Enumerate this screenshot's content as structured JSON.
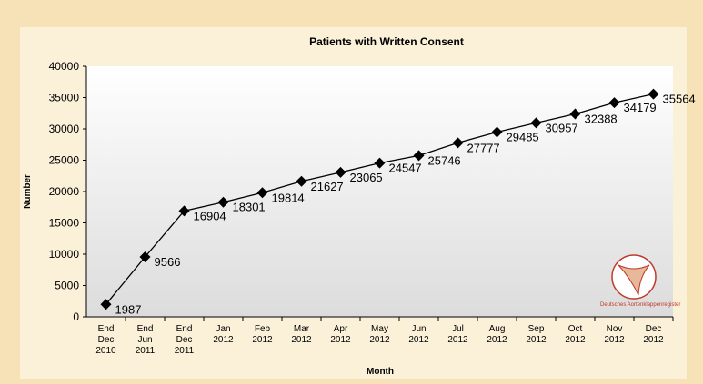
{
  "chart_data": {
    "type": "line",
    "title": "Patients with Written Consent",
    "x_label": "Month",
    "y_label": "Number",
    "categories": [
      "End\nDec\n2010",
      "End\nJun\n2011",
      "End\nDec\n2011",
      "Jan\n2012",
      "Feb\n2012",
      "Mar\n2012",
      "Apr\n2012",
      "May\n2012",
      "Jun\n2012",
      "Jul\n2012",
      "Aug\n2012",
      "Sep\n2012",
      "Oct\n2012",
      "Nov\n2012",
      "Dec\n2012"
    ],
    "series": [
      {
        "name": "Patients with Written Consent",
        "color": "#000000",
        "values": [
          1987,
          9566,
          16904,
          18301,
          19814,
          21627,
          23065,
          24547,
          25746,
          27777,
          29485,
          30957,
          32388,
          34179,
          35564
        ]
      }
    ],
    "ylim": [
      0,
      40000
    ],
    "yticks": [
      0,
      5000,
      10000,
      15000,
      20000,
      25000,
      30000,
      35000,
      40000
    ],
    "grid": false,
    "logo_text": "Deutsches Aortenklappenregister"
  }
}
